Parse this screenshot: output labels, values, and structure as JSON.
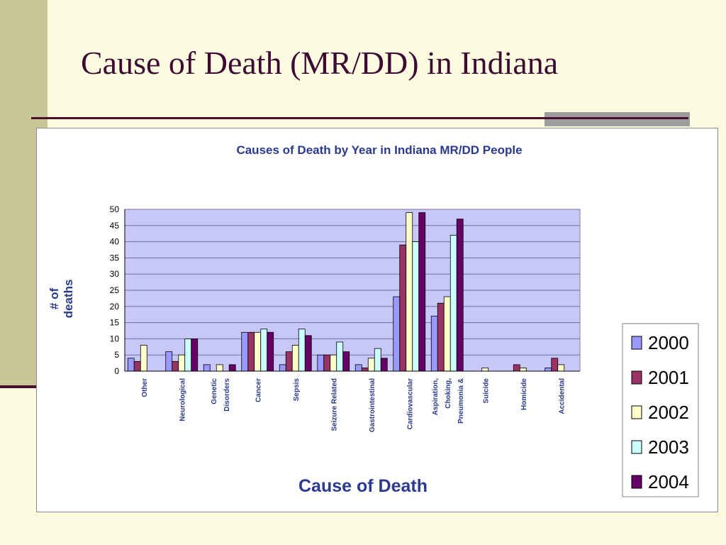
{
  "slide": {
    "title": "Cause of Death (MR/DD) in Indiana"
  },
  "colors": {
    "background": "#FDFCE0",
    "sidebar": "#C9C697",
    "title": "#3D0A33",
    "rule": "#4A0F2A",
    "chart_text": "#2B3A8C",
    "plot_area": "#C8C8F8"
  },
  "chart_data": {
    "type": "bar",
    "title": "Causes of Death by Year in Indiana MR/DD People",
    "xlabel": "Cause of Death",
    "ylabel": "# of deaths",
    "ylim": [
      0,
      50
    ],
    "yticks": [
      0,
      5,
      10,
      15,
      20,
      25,
      30,
      35,
      40,
      45,
      50
    ],
    "grid": true,
    "legend_position": "right",
    "categories": [
      "Other",
      "Neurological",
      "Genetic Disorders",
      "Cancer",
      "Sepsis",
      "Seizure Related",
      "Gastrointestinal",
      "Cardiovascular",
      "Aspiration, Choking, Pneumonia &",
      "Suicide",
      "Homicide",
      "Accidental"
    ],
    "category_label_lines": [
      [
        "Other"
      ],
      [
        "Neurological"
      ],
      [
        "Genetic",
        "Disorders"
      ],
      [
        "Cancer"
      ],
      [
        "Sepsis"
      ],
      [
        "Seizure Related"
      ],
      [
        "Gastrointestinal"
      ],
      [
        "Cardiovascular"
      ],
      [
        "Aspiration,",
        "Choking,",
        "Pneumonia &"
      ],
      [
        "Suicide"
      ],
      [
        "Homicide"
      ],
      [
        "Accidental"
      ]
    ],
    "series": [
      {
        "name": "2000",
        "color": "#9999FF",
        "values": [
          4,
          6,
          2,
          12,
          2,
          5,
          2,
          23,
          17,
          0,
          0,
          1
        ]
      },
      {
        "name": "2001",
        "color": "#993366",
        "values": [
          3,
          3,
          0,
          12,
          6,
          5,
          1,
          39,
          21,
          0,
          2,
          4
        ]
      },
      {
        "name": "2002",
        "color": "#FFFFCC",
        "values": [
          8,
          5,
          2,
          12,
          8,
          5,
          4,
          49,
          23,
          1,
          1,
          2
        ]
      },
      {
        "name": "2003",
        "color": "#CCFFFF",
        "values": [
          0,
          10,
          0,
          13,
          13,
          9,
          7,
          40,
          42,
          0,
          0,
          0
        ]
      },
      {
        "name": "2004",
        "color": "#660066",
        "values": [
          0,
          10,
          2,
          12,
          11,
          6,
          4,
          49,
          47,
          0,
          0,
          0
        ]
      }
    ]
  }
}
